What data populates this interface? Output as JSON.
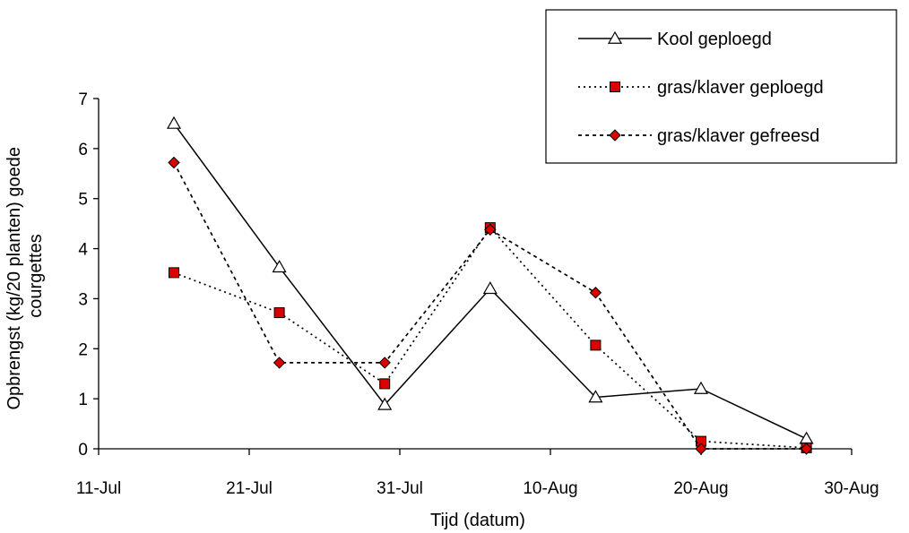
{
  "chart_data": {
    "type": "line",
    "title": "",
    "xlabel": "Tijd (datum)",
    "ylabel_lines": [
      "Opbrengst (kg/20 planten) goede",
      "courgettes"
    ],
    "x_ticks": [
      "11-Jul",
      "21-Jul",
      "31-Jul",
      "10-Aug",
      "20-Aug",
      "30-Aug"
    ],
    "y_ticks": [
      "0",
      "1",
      "2",
      "3",
      "4",
      "5",
      "6",
      "7"
    ],
    "ylim": [
      0,
      7
    ],
    "xlim": [
      "11-Jul",
      "30-Aug"
    ],
    "grid": false,
    "legend_position": "top-right",
    "series": [
      {
        "name": "Kool geploegd",
        "line": "solid",
        "marker": "triangle",
        "marker_fill": "#ffffff",
        "points": [
          {
            "x": "16-Jul",
            "y": 6.5
          },
          {
            "x": "23-Jul",
            "y": 3.63
          },
          {
            "x": "30-Jul",
            "y": 0.88
          },
          {
            "x": "6-Aug",
            "y": 3.2
          },
          {
            "x": "13-Aug",
            "y": 1.03
          },
          {
            "x": "20-Aug",
            "y": 1.2
          },
          {
            "x": "27-Aug",
            "y": 0.2
          }
        ]
      },
      {
        "name": "gras/klaver geploegd",
        "line": "dotted",
        "marker": "square",
        "marker_fill": "#dd0000",
        "points": [
          {
            "x": "16-Jul",
            "y": 3.52
          },
          {
            "x": "23-Jul",
            "y": 2.72
          },
          {
            "x": "30-Jul",
            "y": 1.3
          },
          {
            "x": "6-Aug",
            "y": 4.42
          },
          {
            "x": "13-Aug",
            "y": 2.07
          },
          {
            "x": "20-Aug",
            "y": 0.15
          },
          {
            "x": "27-Aug",
            "y": 0.02
          }
        ]
      },
      {
        "name": "gras/klaver gefreesd",
        "line": "dashed",
        "marker": "diamond",
        "marker_fill": "#dd0000",
        "points": [
          {
            "x": "16-Jul",
            "y": 5.72
          },
          {
            "x": "23-Jul",
            "y": 1.72
          },
          {
            "x": "30-Jul",
            "y": 1.72
          },
          {
            "x": "6-Aug",
            "y": 4.38
          },
          {
            "x": "13-Aug",
            "y": 3.12
          },
          {
            "x": "20-Aug",
            "y": 0.0
          },
          {
            "x": "27-Aug",
            "y": 0.0
          }
        ]
      }
    ]
  }
}
